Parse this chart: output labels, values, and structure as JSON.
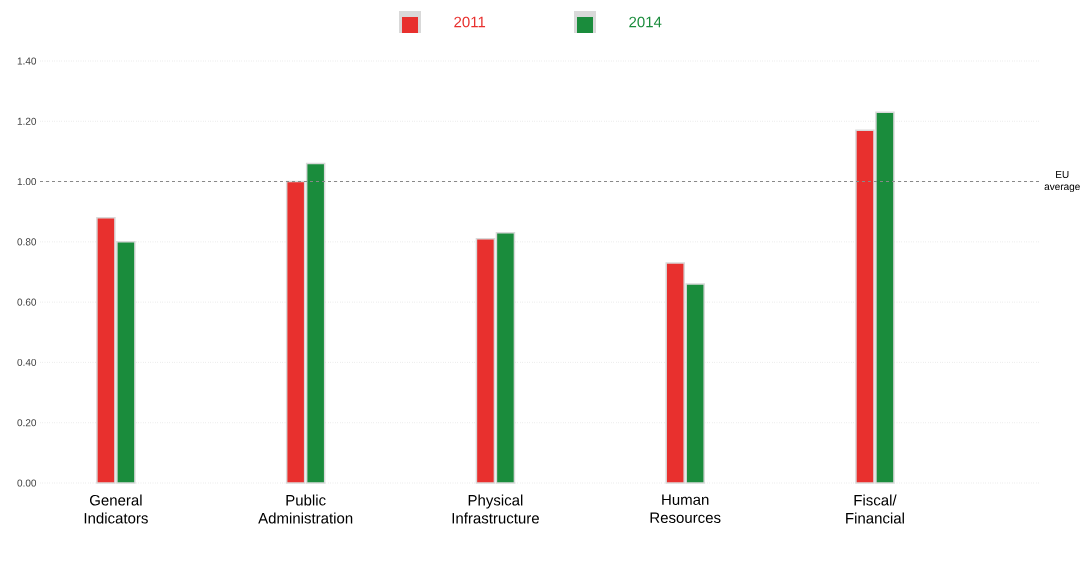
{
  "chart_data": {
    "type": "bar",
    "categories": [
      "General Indicators",
      "Public Administration",
      "Physical Infrastructure",
      "Human Resources",
      "Fiscal/ Financial"
    ],
    "series": [
      {
        "name": "2011",
        "color": "#e8302e",
        "values": [
          0.88,
          1.0,
          0.81,
          0.73,
          1.17
        ]
      },
      {
        "name": "2014",
        "color": "#1a8c3c",
        "values": [
          0.8,
          1.06,
          0.83,
          0.66,
          1.23
        ]
      }
    ],
    "ylim": [
      0,
      1.4
    ],
    "yticks": [
      {
        "value": 0,
        "label": "0.00"
      },
      {
        "value": 0.2,
        "label": "0.20"
      },
      {
        "value": 0.4,
        "label": "0.40"
      },
      {
        "value": 0.6,
        "label": "0.60"
      },
      {
        "value": 0.8,
        "label": "0.80"
      },
      {
        "value": 1.0,
        "label": "1.00"
      },
      {
        "value": 1.2,
        "label": "1.20"
      },
      {
        "value": 1.4,
        "label": "1.40"
      }
    ],
    "grid": "y",
    "legend": "top",
    "ref_lines": [
      {
        "axis": "y",
        "value": 1.0,
        "label": "EU average",
        "color": "#888888",
        "line_style": "dashed"
      }
    ]
  }
}
